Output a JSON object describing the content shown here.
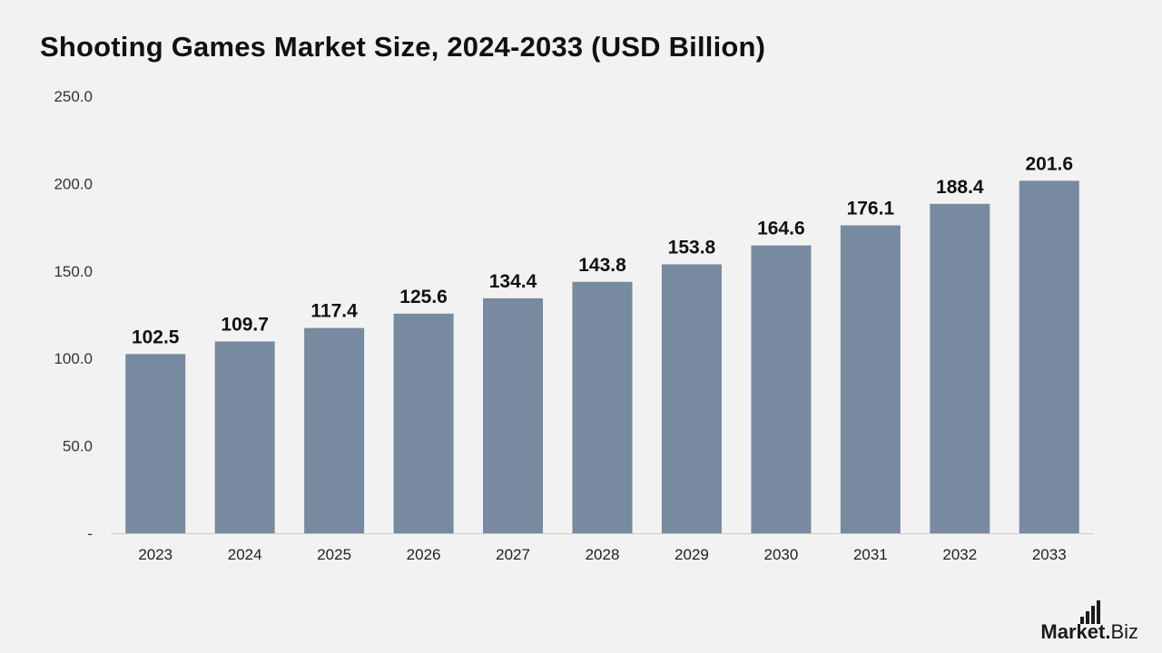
{
  "page": {
    "title": "Shooting Games Market Size, 2024-2033 (USD Billion)"
  },
  "logo": {
    "brand_bold": "Market",
    "brand_dot": ".",
    "brand_light": "Biz"
  },
  "colors": {
    "background": "#f2f2f2",
    "bar": "#778a9f",
    "axis_line": "#cccccc",
    "text": "#111111"
  },
  "chart_data": {
    "type": "bar",
    "title": "Shooting Games Market Size, 2024-2033 (USD Billion)",
    "xlabel": "",
    "ylabel": "",
    "categories": [
      "2023",
      "2024",
      "2025",
      "2026",
      "2027",
      "2028",
      "2029",
      "2030",
      "2031",
      "2032",
      "2033"
    ],
    "values": [
      102.5,
      109.7,
      117.4,
      125.6,
      134.4,
      143.8,
      153.8,
      164.6,
      176.1,
      188.4,
      201.6
    ],
    "data_labels": [
      "102.5",
      "109.7",
      "117.4",
      "125.6",
      "134.4",
      "143.8",
      "153.8",
      "164.6",
      "176.1",
      "188.4",
      "201.6"
    ],
    "ylim": [
      0,
      250
    ],
    "y_ticks": [
      0,
      50,
      100,
      150,
      200,
      250
    ],
    "y_tick_labels": [
      "-",
      "50.0",
      "100.0",
      "150.0",
      "200.0",
      "250.0"
    ],
    "grid": false,
    "legend": "none"
  }
}
